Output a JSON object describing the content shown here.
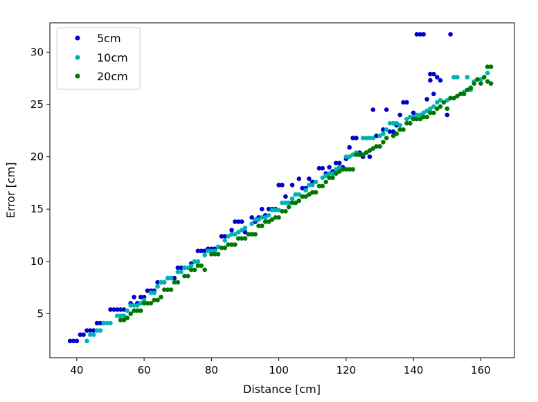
{
  "chart_data": {
    "type": "scatter",
    "title": "",
    "xlabel": "Distance [cm]",
    "ylabel": "Error [cm]",
    "xlim": [
      32,
      170
    ],
    "ylim": [
      0.8,
      32.8
    ],
    "xticks": [
      "40",
      "60",
      "80",
      "100",
      "120",
      "140",
      "160"
    ],
    "yticks": [
      "5",
      "10",
      "15",
      "20",
      "25",
      "30"
    ],
    "grid": false,
    "legend_position": "top-left",
    "series": [
      {
        "name": "5cm",
        "color": "#0000cc",
        "points": [
          [
            38,
            2.4
          ],
          [
            39,
            2.4
          ],
          [
            40,
            2.4
          ],
          [
            41,
            3.0
          ],
          [
            42,
            3.0
          ],
          [
            43,
            3.4
          ],
          [
            44,
            3.4
          ],
          [
            45,
            3.4
          ],
          [
            46,
            4.1
          ],
          [
            47,
            4.1
          ],
          [
            48,
            4.1
          ],
          [
            50,
            5.4
          ],
          [
            51,
            5.4
          ],
          [
            52,
            5.4
          ],
          [
            53,
            5.4
          ],
          [
            54,
            5.4
          ],
          [
            56,
            6.0
          ],
          [
            57,
            6.6
          ],
          [
            58,
            6.0
          ],
          [
            59,
            6.6
          ],
          [
            60,
            6.6
          ],
          [
            61,
            7.2
          ],
          [
            62,
            7.2
          ],
          [
            63,
            7.2
          ],
          [
            64,
            8.0
          ],
          [
            65,
            8.0
          ],
          [
            66,
            8.0
          ],
          [
            67,
            8.4
          ],
          [
            68,
            8.4
          ],
          [
            69,
            8.4
          ],
          [
            70,
            9.4
          ],
          [
            71,
            9.4
          ],
          [
            72,
            9.4
          ],
          [
            74,
            9.8
          ],
          [
            75,
            10.0
          ],
          [
            76,
            11.0
          ],
          [
            77,
            11.0
          ],
          [
            78,
            11.0
          ],
          [
            79,
            11.2
          ],
          [
            80,
            11.2
          ],
          [
            81,
            11.2
          ],
          [
            83,
            12.4
          ],
          [
            84,
            12.4
          ],
          [
            86,
            13.0
          ],
          [
            87,
            13.8
          ],
          [
            88,
            13.8
          ],
          [
            89,
            13.8
          ],
          [
            90,
            12.8
          ],
          [
            92,
            14.2
          ],
          [
            93,
            13.8
          ],
          [
            94,
            14.2
          ],
          [
            95,
            15.0
          ],
          [
            96,
            14.4
          ],
          [
            97,
            15.0
          ],
          [
            98,
            15.0
          ],
          [
            99,
            15.0
          ],
          [
            100,
            17.3
          ],
          [
            101,
            17.3
          ],
          [
            102,
            16.2
          ],
          [
            104,
            17.3
          ],
          [
            105,
            16.4
          ],
          [
            106,
            17.9
          ],
          [
            107,
            17.0
          ],
          [
            108,
            17.0
          ],
          [
            109,
            17.9
          ],
          [
            110,
            17.6
          ],
          [
            112,
            18.9
          ],
          [
            113,
            18.9
          ],
          [
            114,
            18.4
          ],
          [
            115,
            19.0
          ],
          [
            116,
            18.6
          ],
          [
            117,
            19.4
          ],
          [
            118,
            19.4
          ],
          [
            119,
            19.0
          ],
          [
            120,
            19.8
          ],
          [
            121,
            20.9
          ],
          [
            122,
            21.8
          ],
          [
            123,
            21.8
          ],
          [
            124,
            20.4
          ],
          [
            125,
            20.0
          ],
          [
            126,
            20.4
          ],
          [
            127,
            20.0
          ],
          [
            128,
            24.5
          ],
          [
            129,
            22.0
          ],
          [
            130,
            21.0
          ],
          [
            131,
            22.6
          ],
          [
            132,
            24.5
          ],
          [
            133,
            22.4
          ],
          [
            134,
            22.4
          ],
          [
            135,
            23.0
          ],
          [
            136,
            24.0
          ],
          [
            137,
            25.2
          ],
          [
            138,
            25.2
          ],
          [
            139,
            23.2
          ],
          [
            140,
            24.2
          ],
          [
            141,
            31.7
          ],
          [
            142,
            31.7
          ],
          [
            143,
            31.7
          ],
          [
            144,
            25.5
          ],
          [
            145,
            27.9
          ],
          [
            145,
            27.3
          ],
          [
            146,
            27.9
          ],
          [
            146,
            26.0
          ],
          [
            147,
            27.6
          ],
          [
            148,
            27.3
          ],
          [
            150,
            24.0
          ],
          [
            151,
            31.7
          ]
        ]
      },
      {
        "name": "10cm",
        "color": "#00b3b3",
        "points": [
          [
            43,
            2.4
          ],
          [
            44,
            3.0
          ],
          [
            45,
            3.0
          ],
          [
            46,
            3.4
          ],
          [
            47,
            3.4
          ],
          [
            48,
            4.1
          ],
          [
            49,
            4.1
          ],
          [
            50,
            4.1
          ],
          [
            52,
            4.8
          ],
          [
            53,
            4.8
          ],
          [
            54,
            4.8
          ],
          [
            55,
            5.3
          ],
          [
            56,
            5.8
          ],
          [
            57,
            5.8
          ],
          [
            58,
            5.8
          ],
          [
            59,
            6.0
          ],
          [
            60,
            6.3
          ],
          [
            62,
            7.0
          ],
          [
            63,
            7.0
          ],
          [
            64,
            7.6
          ],
          [
            65,
            8.0
          ],
          [
            66,
            8.0
          ],
          [
            67,
            8.4
          ],
          [
            68,
            8.4
          ],
          [
            70,
            9.0
          ],
          [
            71,
            9.0
          ],
          [
            72,
            9.4
          ],
          [
            73,
            9.4
          ],
          [
            74,
            9.6
          ],
          [
            75,
            10.0
          ],
          [
            76,
            10.0
          ],
          [
            78,
            10.6
          ],
          [
            79,
            11.0
          ],
          [
            80,
            11.0
          ],
          [
            81,
            11.0
          ],
          [
            82,
            11.4
          ],
          [
            84,
            12.0
          ],
          [
            85,
            12.4
          ],
          [
            86,
            12.6
          ],
          [
            87,
            12.6
          ],
          [
            88,
            12.8
          ],
          [
            89,
            13.0
          ],
          [
            90,
            13.2
          ],
          [
            92,
            13.6
          ],
          [
            93,
            14.0
          ],
          [
            94,
            14.0
          ],
          [
            95,
            14.2
          ],
          [
            96,
            14.2
          ],
          [
            97,
            14.4
          ],
          [
            98,
            14.9
          ],
          [
            99,
            14.9
          ],
          [
            100,
            14.9
          ],
          [
            101,
            15.6
          ],
          [
            102,
            15.6
          ],
          [
            103,
            15.6
          ],
          [
            104,
            16.0
          ],
          [
            105,
            16.4
          ],
          [
            106,
            16.4
          ],
          [
            108,
            16.8
          ],
          [
            109,
            17.3
          ],
          [
            110,
            17.3
          ],
          [
            111,
            17.6
          ],
          [
            113,
            18.0
          ],
          [
            114,
            18.2
          ],
          [
            115,
            18.4
          ],
          [
            116,
            18.4
          ],
          [
            117,
            18.8
          ],
          [
            118,
            19.0
          ],
          [
            120,
            20.0
          ],
          [
            121,
            20.0
          ],
          [
            122,
            20.2
          ],
          [
            123,
            20.4
          ],
          [
            124,
            20.2
          ],
          [
            125,
            21.8
          ],
          [
            126,
            21.8
          ],
          [
            127,
            21.8
          ],
          [
            128,
            21.8
          ],
          [
            130,
            22.0
          ],
          [
            131,
            22.2
          ],
          [
            132,
            22.6
          ],
          [
            133,
            23.2
          ],
          [
            134,
            23.2
          ],
          [
            135,
            23.2
          ],
          [
            136,
            23.0
          ],
          [
            138,
            23.6
          ],
          [
            139,
            23.8
          ],
          [
            140,
            23.8
          ],
          [
            141,
            24.0
          ],
          [
            142,
            24.0
          ],
          [
            143,
            24.2
          ],
          [
            144,
            24.4
          ],
          [
            145,
            24.6
          ],
          [
            146,
            24.8
          ],
          [
            147,
            25.2
          ],
          [
            148,
            25.4
          ],
          [
            150,
            25.4
          ],
          [
            151,
            25.6
          ],
          [
            152,
            27.6
          ],
          [
            153,
            27.6
          ],
          [
            154,
            26.0
          ],
          [
            155,
            26.2
          ],
          [
            156,
            27.6
          ],
          [
            157,
            26.4
          ],
          [
            158,
            27.2
          ],
          [
            159,
            27.4
          ],
          [
            160,
            27.4
          ],
          [
            161,
            27.6
          ],
          [
            162,
            28.0
          ]
        ]
      },
      {
        "name": "20cm",
        "color": "#007700",
        "points": [
          [
            53,
            4.4
          ],
          [
            54,
            4.4
          ],
          [
            55,
            4.6
          ],
          [
            56,
            5.0
          ],
          [
            57,
            5.3
          ],
          [
            58,
            5.3
          ],
          [
            59,
            5.3
          ],
          [
            60,
            6.0
          ],
          [
            61,
            6.0
          ],
          [
            62,
            6.0
          ],
          [
            63,
            6.3
          ],
          [
            64,
            6.3
          ],
          [
            65,
            6.6
          ],
          [
            66,
            7.3
          ],
          [
            67,
            7.3
          ],
          [
            68,
            7.3
          ],
          [
            69,
            8.0
          ],
          [
            70,
            8.0
          ],
          [
            72,
            8.6
          ],
          [
            73,
            8.6
          ],
          [
            74,
            9.2
          ],
          [
            75,
            9.2
          ],
          [
            76,
            9.6
          ],
          [
            77,
            9.6
          ],
          [
            78,
            9.2
          ],
          [
            80,
            10.7
          ],
          [
            81,
            10.7
          ],
          [
            82,
            10.7
          ],
          [
            83,
            11.3
          ],
          [
            84,
            11.3
          ],
          [
            85,
            11.6
          ],
          [
            86,
            11.6
          ],
          [
            87,
            11.6
          ],
          [
            88,
            12.2
          ],
          [
            89,
            12.2
          ],
          [
            90,
            12.2
          ],
          [
            91,
            12.6
          ],
          [
            92,
            12.6
          ],
          [
            93,
            12.6
          ],
          [
            94,
            13.4
          ],
          [
            95,
            13.4
          ],
          [
            96,
            13.8
          ],
          [
            97,
            13.8
          ],
          [
            98,
            14.0
          ],
          [
            99,
            14.2
          ],
          [
            100,
            14.2
          ],
          [
            101,
            14.8
          ],
          [
            102,
            14.8
          ],
          [
            103,
            15.2
          ],
          [
            104,
            15.6
          ],
          [
            105,
            15.6
          ],
          [
            106,
            15.8
          ],
          [
            107,
            16.2
          ],
          [
            108,
            16.2
          ],
          [
            109,
            16.4
          ],
          [
            110,
            16.6
          ],
          [
            111,
            16.6
          ],
          [
            112,
            17.2
          ],
          [
            113,
            17.2
          ],
          [
            114,
            17.6
          ],
          [
            115,
            18.0
          ],
          [
            116,
            18.0
          ],
          [
            117,
            18.4
          ],
          [
            118,
            18.6
          ],
          [
            119,
            18.8
          ],
          [
            120,
            18.8
          ],
          [
            121,
            18.8
          ],
          [
            122,
            18.8
          ],
          [
            123,
            20.2
          ],
          [
            124,
            20.2
          ],
          [
            125,
            20.2
          ],
          [
            126,
            20.4
          ],
          [
            127,
            20.6
          ],
          [
            128,
            20.8
          ],
          [
            129,
            21.0
          ],
          [
            130,
            21.0
          ],
          [
            131,
            21.4
          ],
          [
            132,
            21.8
          ],
          [
            134,
            22.0
          ],
          [
            135,
            22.2
          ],
          [
            136,
            22.6
          ],
          [
            137,
            22.6
          ],
          [
            138,
            23.2
          ],
          [
            139,
            23.2
          ],
          [
            140,
            23.6
          ],
          [
            141,
            23.6
          ],
          [
            142,
            23.6
          ],
          [
            143,
            23.8
          ],
          [
            144,
            23.8
          ],
          [
            145,
            24.2
          ],
          [
            146,
            24.2
          ],
          [
            147,
            24.6
          ],
          [
            148,
            24.8
          ],
          [
            149,
            25.2
          ],
          [
            150,
            24.6
          ],
          [
            151,
            25.6
          ],
          [
            152,
            25.6
          ],
          [
            153,
            25.8
          ],
          [
            154,
            26.0
          ],
          [
            155,
            26.0
          ],
          [
            156,
            26.4
          ],
          [
            157,
            26.6
          ],
          [
            158,
            27.0
          ],
          [
            159,
            27.4
          ],
          [
            160,
            27.0
          ],
          [
            161,
            27.6
          ],
          [
            162,
            27.2
          ],
          [
            162,
            28.6
          ],
          [
            163,
            28.6
          ],
          [
            163,
            27.0
          ]
        ]
      }
    ]
  }
}
